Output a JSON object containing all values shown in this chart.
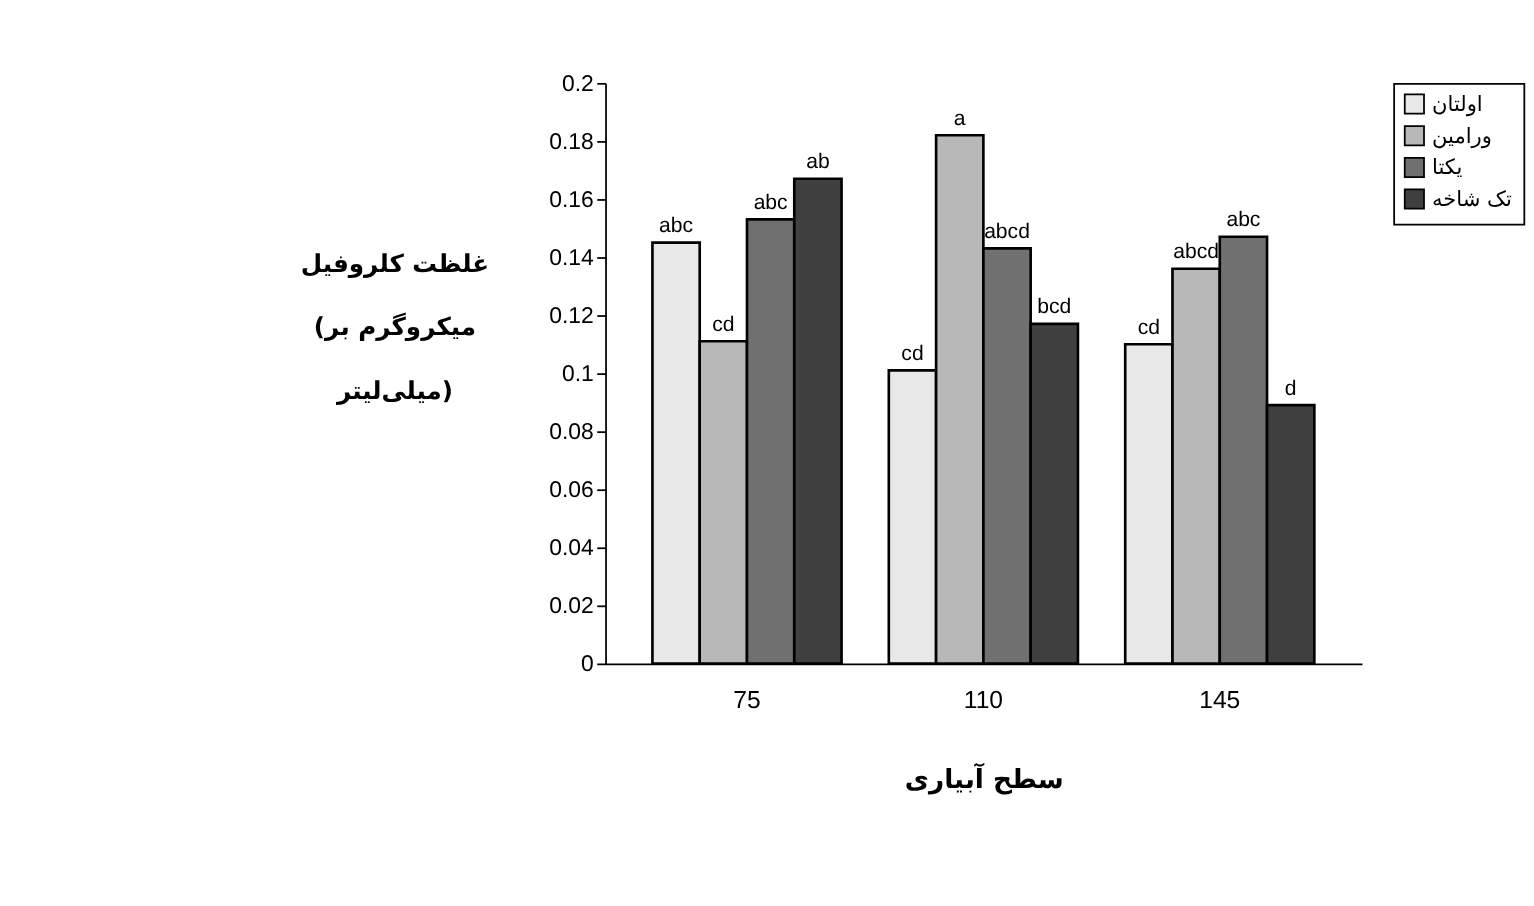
{
  "chart_data": {
    "type": "bar",
    "xlabel": "سطح آبیاری",
    "ylabel": "غلظت کلروفیل\n(میکروگرم بر\nمیلی‌لیتر)",
    "categories": [
      "75",
      "110",
      "145"
    ],
    "series": [
      {
        "name": "اولتان",
        "color": "#e8e8e8",
        "values": [
          0.145,
          0.101,
          0.11
        ],
        "value_labels": [
          "abc",
          "cd",
          "cd"
        ]
      },
      {
        "name": "ورامین",
        "color": "#b8b8b8",
        "values": [
          0.111,
          0.182,
          0.136
        ],
        "value_labels": [
          "cd",
          "a",
          "abcd"
        ]
      },
      {
        "name": "یکتا",
        "color": "#707070",
        "values": [
          0.153,
          0.143,
          0.147
        ],
        "value_labels": [
          "abc",
          "abcd",
          "abc"
        ]
      },
      {
        "name": "تک شاخه",
        "color": "#404040",
        "values": [
          0.167,
          0.117,
          0.089
        ],
        "value_labels": [
          "ab",
          "bcd",
          "d"
        ]
      }
    ],
    "ylim": [
      0,
      0.2
    ],
    "yticks": [
      0,
      0.02,
      0.04,
      0.06,
      0.08,
      0.1,
      0.12,
      0.14,
      0.16,
      0.18,
      0.2
    ],
    "grid": false,
    "legend": "right"
  }
}
